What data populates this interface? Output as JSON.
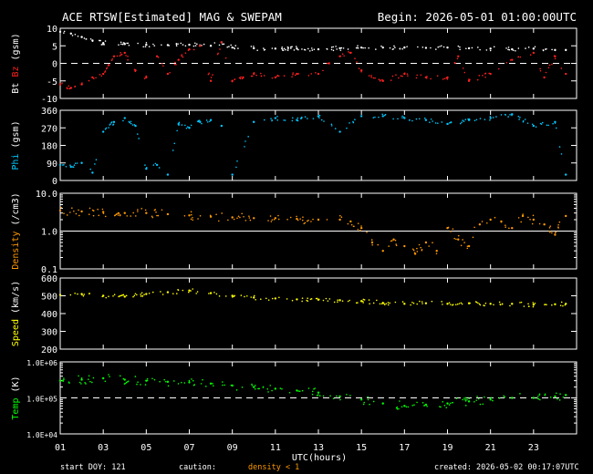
{
  "header": {
    "title": "ACE RTSW[Estimated] MAG & SWEPAM",
    "begin": "Begin: 2026-05-01 01:00:00UTC"
  },
  "footer": {
    "start_doy": "start DOY: 121",
    "caution_label": "caution:",
    "caution_note": "density < 1",
    "created": "created: 2026-05-02 00:17:07UTC"
  },
  "colors": {
    "background": "#000000",
    "axis": "#ffffff",
    "bt": "#ffffff",
    "bz": "#ff2020",
    "phi": "#00c8ff",
    "density": "#ff9900",
    "speed": "#ffff00",
    "temp": "#00ff00"
  },
  "chart_data": [
    {
      "type": "scatter",
      "panel": "mag_bz_bt",
      "ylabel_parts": [
        "Bt",
        "Bz",
        "(gsm)"
      ],
      "ylim": [
        -10,
        10
      ],
      "yticks": [
        "10",
        "5",
        "0",
        "-5",
        "-10"
      ],
      "ytick_values": [
        10,
        5,
        0,
        -5,
        -10
      ],
      "dashed_line_at": 0,
      "series": [
        {
          "name": "Bt",
          "color": "#ffffff",
          "x": [
            0,
            0.5,
            1,
            1.5,
            2,
            3,
            4,
            5,
            6,
            7,
            7.5,
            8,
            9,
            10,
            11,
            12,
            13,
            14,
            15,
            16,
            17,
            18,
            19,
            20,
            21,
            22,
            23,
            23.5
          ],
          "values": [
            9,
            8.5,
            7.5,
            6.5,
            5.8,
            5.5,
            5.3,
            5.2,
            5.3,
            5.0,
            6.0,
            4.5,
            4.3,
            4.2,
            4.2,
            4.0,
            4.3,
            4.5,
            4.5,
            4.5,
            4.4,
            4.5,
            4.3,
            4.2,
            4.0,
            4.2,
            3.8,
            3.8
          ]
        },
        {
          "name": "Bz",
          "color": "#ff2020",
          "x": [
            0,
            0.5,
            1,
            1.5,
            2,
            2.5,
            3,
            3.5,
            4,
            4.5,
            5,
            5.5,
            6,
            6.5,
            7,
            7.5,
            8,
            8.5,
            9,
            10,
            11,
            12,
            12.5,
            13,
            13.5,
            14,
            15,
            16,
            17,
            18,
            18.5,
            19,
            20,
            21,
            22,
            22.5,
            23,
            23.5
          ],
          "values": [
            -6,
            -7,
            -6,
            -4,
            -3,
            2,
            3,
            -2,
            -4,
            2,
            -3,
            1,
            4,
            5,
            -5,
            6,
            -5,
            -4,
            -3,
            -4,
            -3,
            -3,
            0,
            2,
            3,
            -2,
            -5,
            -3,
            -4,
            -4,
            2,
            -5,
            -3,
            1,
            3,
            -4,
            2,
            -3
          ]
        }
      ]
    },
    {
      "type": "scatter",
      "panel": "phi",
      "ylabel_parts": [
        "Phi",
        "(gsm)"
      ],
      "ylim": [
        0,
        360
      ],
      "yticks": [
        "360",
        "270",
        "180",
        "90",
        "0"
      ],
      "ytick_values": [
        360,
        270,
        180,
        90,
        0
      ],
      "series": [
        {
          "name": "Phi",
          "color": "#00c8ff",
          "x": [
            0,
            0.5,
            1,
            1.5,
            2,
            2.5,
            3,
            3.5,
            4,
            4.5,
            5,
            5.5,
            6,
            6.5,
            7,
            7.5,
            8,
            9,
            10,
            11,
            12,
            13,
            14,
            15,
            16,
            17,
            18,
            19,
            20,
            21,
            22,
            23,
            23.5
          ],
          "values": [
            80,
            70,
            90,
            40,
            250,
            300,
            320,
            280,
            60,
            80,
            30,
            290,
            270,
            300,
            310,
            280,
            30,
            300,
            320,
            310,
            330,
            250,
            330,
            330,
            320,
            310,
            290,
            310,
            320,
            340,
            280,
            300,
            30
          ]
        }
      ]
    },
    {
      "type": "scatter",
      "panel": "density",
      "ylabel_parts": [
        "Density",
        "(/cm3)"
      ],
      "yscale": "log",
      "ylim": [
        0.1,
        10
      ],
      "yticks": [
        "10.0",
        "1.0",
        "0.1"
      ],
      "ytick_values": [
        10,
        1,
        0.1
      ],
      "solid_line_at": 1,
      "series": [
        {
          "name": "Density",
          "color": "#ff9900",
          "x": [
            0,
            1,
            2,
            3,
            4,
            5,
            6,
            7,
            8,
            9,
            10,
            11,
            12,
            13,
            13.5,
            14,
            14.5,
            15,
            15.5,
            16,
            16.5,
            17,
            17.5,
            18,
            18.5,
            19,
            19.5,
            20,
            20.5,
            21,
            21.5,
            22,
            22.5,
            23,
            23.5
          ],
          "values": [
            3.5,
            3.3,
            3.2,
            3.0,
            3.0,
            2.8,
            2.6,
            2.4,
            2.3,
            2.2,
            2.2,
            2.1,
            2.0,
            2.0,
            1.8,
            1.2,
            0.5,
            0.3,
            0.6,
            0.4,
            0.25,
            0.5,
            0.3,
            1.2,
            0.6,
            0.4,
            1.5,
            2.0,
            1.8,
            1.2,
            2.5,
            2.0,
            1.5,
            0.8,
            2.5
          ]
        }
      ]
    },
    {
      "type": "scatter",
      "panel": "speed",
      "ylabel_parts": [
        "Speed",
        "(km/s)"
      ],
      "ylim": [
        200,
        600
      ],
      "yticks": [
        "600",
        "500",
        "400",
        "300",
        "200"
      ],
      "ytick_values": [
        600,
        500,
        400,
        300,
        200
      ],
      "series": [
        {
          "name": "Speed",
          "color": "#ffff00",
          "x": [
            0,
            1,
            2,
            3,
            4,
            5,
            6,
            7,
            8,
            9,
            10,
            11,
            12,
            13,
            14,
            15,
            16,
            17,
            18,
            19,
            20,
            21,
            22,
            23,
            23.5
          ],
          "values": [
            505,
            510,
            500,
            495,
            510,
            520,
            530,
            515,
            500,
            490,
            485,
            480,
            478,
            475,
            470,
            460,
            455,
            458,
            455,
            458,
            455,
            455,
            450,
            452,
            455
          ]
        }
      ]
    },
    {
      "type": "scatter",
      "panel": "temp",
      "ylabel_parts": [
        "Temp",
        "(K)"
      ],
      "yscale": "log",
      "ylim": [
        10000,
        1000000
      ],
      "yticks": [
        "1.0E+06",
        "1.0E+05",
        "1.0E+04"
      ],
      "ytick_values": [
        1000000,
        100000,
        10000
      ],
      "dashed_line_at": 100000,
      "series": [
        {
          "name": "Temp",
          "color": "#00ff00",
          "x": [
            0,
            1,
            2,
            3,
            4,
            5,
            6,
            7,
            8,
            9,
            10,
            11,
            12,
            13,
            14,
            15,
            16,
            17,
            18,
            19,
            20,
            21,
            22,
            23,
            23.5
          ],
          "values": [
            300000,
            320000,
            350000,
            320000,
            300000,
            280000,
            270000,
            250000,
            220000,
            200000,
            180000,
            160000,
            140000,
            110000,
            90000,
            70000,
            60000,
            65000,
            70000,
            80000,
            90000,
            100000,
            100000,
            110000,
            120000
          ]
        }
      ]
    }
  ],
  "xaxis": {
    "label": "UTC(hours)",
    "ticks": [
      "01",
      "03",
      "05",
      "07",
      "09",
      "11",
      "13",
      "15",
      "17",
      "19",
      "21",
      "23"
    ],
    "tick_hours": [
      0,
      2,
      4,
      6,
      8,
      10,
      12,
      14,
      16,
      18,
      20,
      22
    ],
    "range_hours": [
      0,
      24
    ]
  }
}
